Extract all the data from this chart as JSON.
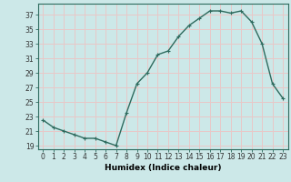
{
  "x": [
    0,
    1,
    2,
    3,
    4,
    5,
    6,
    7,
    8,
    9,
    10,
    11,
    12,
    13,
    14,
    15,
    16,
    17,
    18,
    19,
    20,
    21,
    22,
    23
  ],
  "y": [
    22.5,
    21.5,
    21.0,
    20.5,
    20.0,
    20.0,
    19.5,
    19.0,
    23.5,
    27.5,
    29.0,
    31.5,
    32.0,
    34.0,
    35.5,
    36.5,
    37.5,
    37.5,
    37.2,
    37.5,
    36.0,
    33.0,
    27.5,
    25.5
  ],
  "line_color": "#2e6b5e",
  "marker": "+",
  "bg_color": "#cce8e8",
  "grid_color": "#e8c8c8",
  "xlabel": "Humidex (Indice chaleur)",
  "xlim": [
    -0.5,
    23.5
  ],
  "ylim": [
    18.5,
    38.5
  ],
  "yticks": [
    19,
    21,
    23,
    25,
    27,
    29,
    31,
    33,
    35,
    37
  ],
  "xticks": [
    0,
    1,
    2,
    3,
    4,
    5,
    6,
    7,
    8,
    9,
    10,
    11,
    12,
    13,
    14,
    15,
    16,
    17,
    18,
    19,
    20,
    21,
    22,
    23
  ],
  "tick_fontsize": 5.5,
  "xlabel_fontsize": 6.5,
  "line_width": 1.0,
  "marker_size": 3.5
}
